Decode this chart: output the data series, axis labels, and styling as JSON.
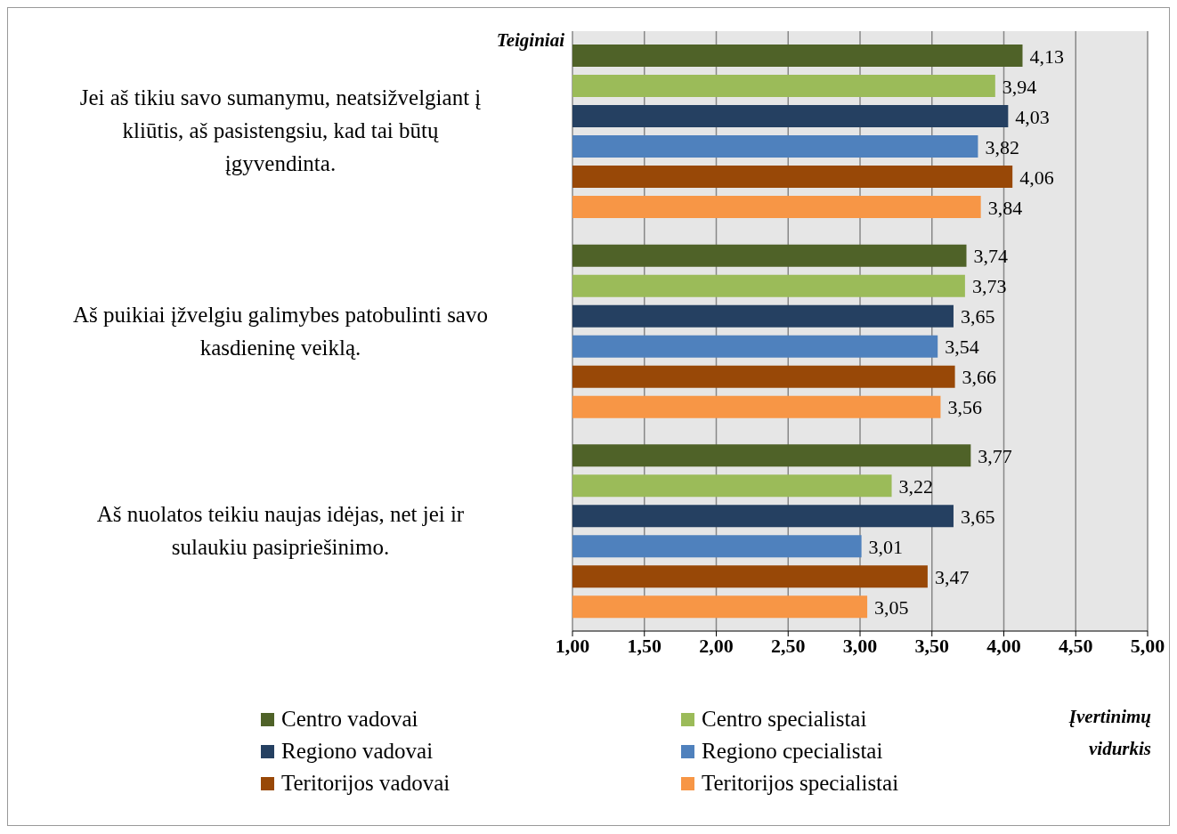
{
  "chart_data": {
    "type": "bar",
    "orientation": "horizontal",
    "ylabel": "Teiginiai",
    "xlabel": "Įvertinimų vidurkis",
    "categories": [
      "Jei aš tikiu savo sumanymu, neatsižvelgiant į kliūtis, aš pasistengsiu, kad tai būtų įgyvendinta.",
      "Aš puikiai įžvelgiu galimybes patobulinti savo kasdieninę veiklą.",
      "Aš nuolatos teikiu naujas idėjas, net jei ir sulaukiu pasipriešinimo."
    ],
    "series": [
      {
        "name": "Centro vadovai",
        "color": "#4f6228",
        "values": [
          4.13,
          3.74,
          3.77
        ],
        "value_labels": [
          "4,13",
          "3,74",
          "3,77"
        ]
      },
      {
        "name": "Centro specialistai",
        "color": "#9bbb59",
        "values": [
          3.94,
          3.73,
          3.22
        ],
        "value_labels": [
          "3,94",
          "3,73",
          "3,22"
        ]
      },
      {
        "name": "Regiono vadovai",
        "color": "#254061",
        "values": [
          4.03,
          3.65,
          3.65
        ],
        "value_labels": [
          "4,03",
          "3,65",
          "3,65"
        ]
      },
      {
        "name": "Regiono cpecialistai",
        "color": "#4f81bd",
        "values": [
          3.82,
          3.54,
          3.01
        ],
        "value_labels": [
          "3,82",
          "3,54",
          "3,01"
        ]
      },
      {
        "name": "Teritorijos vadovai",
        "color": "#984807",
        "values": [
          4.06,
          3.66,
          3.47
        ],
        "value_labels": [
          "4,06",
          "3,66",
          "3,47"
        ]
      },
      {
        "name": "Teritorijos specialistai",
        "color": "#f79646",
        "values": [
          3.84,
          3.56,
          3.05
        ],
        "value_labels": [
          "3,84",
          "3,56",
          "3,05"
        ]
      }
    ],
    "xlim": [
      1,
      5
    ],
    "xticks": [
      {
        "value": 1,
        "label": "1,00"
      },
      {
        "value": 1.5,
        "label": "1,50"
      },
      {
        "value": 2,
        "label": "2,00"
      },
      {
        "value": 2.5,
        "label": "2,50"
      },
      {
        "value": 3,
        "label": "3,00"
      },
      {
        "value": 3.5,
        "label": "3,50"
      },
      {
        "value": 4,
        "label": "4,00"
      },
      {
        "value": 4.5,
        "label": "4,50"
      },
      {
        "value": 5,
        "label": "5,00"
      }
    ],
    "grid": "x",
    "legend": "bottom"
  }
}
